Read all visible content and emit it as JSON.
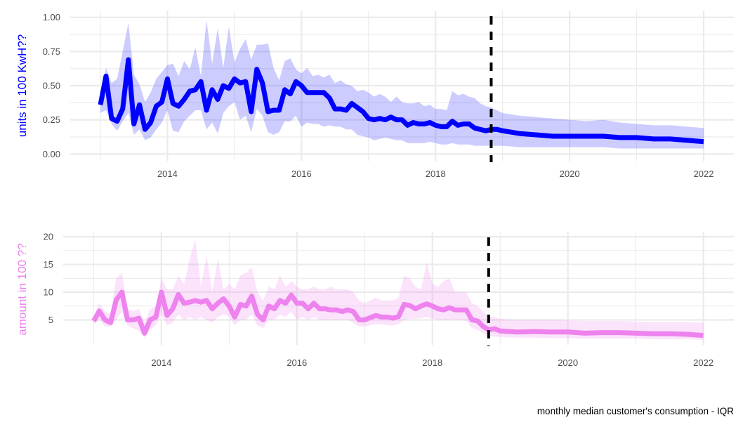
{
  "caption": "monthly median customer's consumption - IQR",
  "chart_data": [
    {
      "type": "area",
      "id": "top",
      "ylabel": "units in 100 KwH??",
      "ylabel_color": "#0000ff",
      "line_color": "#0000ff",
      "band_color": "#0000ff",
      "band_opacity": 0.2,
      "xlim": [
        2012.55,
        2022.45
      ],
      "ylim": [
        -0.05,
        1.05
      ],
      "x_ticks": [
        2014,
        2016,
        2018,
        2020,
        2022
      ],
      "x_tick_labels": [
        "2014",
        "2016",
        "2018",
        "2020",
        "2022"
      ],
      "y_ticks": [
        0.0,
        0.25,
        0.5,
        0.75,
        1.0
      ],
      "y_tick_labels": [
        "0.00",
        "0.25",
        "0.50",
        "0.75",
        "1.00"
      ],
      "vline": 2018.83,
      "x": [
        2013.0,
        2013.083,
        2013.167,
        2013.25,
        2013.333,
        2013.417,
        2013.5,
        2013.583,
        2013.667,
        2013.75,
        2013.833,
        2013.917,
        2014.0,
        2014.083,
        2014.167,
        2014.25,
        2014.333,
        2014.417,
        2014.5,
        2014.583,
        2014.667,
        2014.75,
        2014.833,
        2014.917,
        2015.0,
        2015.083,
        2015.167,
        2015.25,
        2015.333,
        2015.417,
        2015.5,
        2015.583,
        2015.667,
        2015.75,
        2015.833,
        2015.917,
        2016.0,
        2016.083,
        2016.167,
        2016.25,
        2016.333,
        2016.417,
        2016.5,
        2016.583,
        2016.667,
        2016.75,
        2016.833,
        2016.917,
        2017.0,
        2017.083,
        2017.167,
        2017.25,
        2017.333,
        2017.417,
        2017.5,
        2017.583,
        2017.667,
        2017.75,
        2017.833,
        2017.917,
        2018.0,
        2018.083,
        2018.167,
        2018.25,
        2018.333,
        2018.417,
        2018.5,
        2018.583,
        2018.667,
        2018.75,
        2018.833,
        2018.917,
        2019.0,
        2019.25,
        2019.5,
        2019.75,
        2020.0,
        2020.25,
        2020.5,
        2020.75,
        2021.0,
        2021.25,
        2021.5,
        2021.75,
        2022.0
      ],
      "median": [
        0.36,
        0.57,
        0.26,
        0.24,
        0.33,
        0.69,
        0.22,
        0.36,
        0.18,
        0.23,
        0.35,
        0.38,
        0.55,
        0.37,
        0.35,
        0.4,
        0.46,
        0.47,
        0.53,
        0.32,
        0.47,
        0.4,
        0.5,
        0.48,
        0.55,
        0.52,
        0.53,
        0.31,
        0.62,
        0.52,
        0.31,
        0.32,
        0.32,
        0.47,
        0.44,
        0.53,
        0.5,
        0.45,
        0.45,
        0.45,
        0.45,
        0.41,
        0.33,
        0.33,
        0.32,
        0.37,
        0.34,
        0.31,
        0.26,
        0.25,
        0.26,
        0.25,
        0.27,
        0.25,
        0.25,
        0.21,
        0.23,
        0.22,
        0.22,
        0.23,
        0.21,
        0.2,
        0.2,
        0.24,
        0.21,
        0.22,
        0.22,
        0.19,
        0.18,
        0.17,
        0.18,
        0.18,
        0.17,
        0.15,
        0.14,
        0.13,
        0.13,
        0.13,
        0.13,
        0.12,
        0.12,
        0.11,
        0.11,
        0.1,
        0.09
      ],
      "q1": [
        0.3,
        0.32,
        0.22,
        0.17,
        0.24,
        0.3,
        0.14,
        0.18,
        0.1,
        0.12,
        0.18,
        0.23,
        0.32,
        0.17,
        0.16,
        0.24,
        0.28,
        0.32,
        0.32,
        0.18,
        0.23,
        0.15,
        0.3,
        0.35,
        0.38,
        0.25,
        0.28,
        0.16,
        0.33,
        0.28,
        0.16,
        0.14,
        0.16,
        0.24,
        0.24,
        0.28,
        0.2,
        0.23,
        0.22,
        0.22,
        0.2,
        0.21,
        0.2,
        0.2,
        0.18,
        0.18,
        0.14,
        0.13,
        0.12,
        0.1,
        0.11,
        0.12,
        0.11,
        0.1,
        0.1,
        0.08,
        0.08,
        0.08,
        0.08,
        0.09,
        0.08,
        0.07,
        0.07,
        0.08,
        0.07,
        0.07,
        0.07,
        0.06,
        0.06,
        0.06,
        0.06,
        0.06,
        0.06,
        0.05,
        0.05,
        0.05,
        0.05,
        0.05,
        0.05,
        0.04,
        0.04,
        0.04,
        0.04,
        0.04,
        0.04
      ],
      "q3": [
        0.42,
        0.63,
        0.52,
        0.55,
        0.75,
        0.96,
        0.58,
        0.51,
        0.38,
        0.45,
        0.55,
        0.6,
        0.65,
        0.66,
        0.57,
        0.68,
        0.62,
        0.78,
        0.57,
        0.98,
        0.66,
        0.92,
        0.63,
        0.93,
        0.67,
        0.77,
        0.84,
        0.69,
        0.8,
        0.8,
        0.81,
        0.63,
        0.54,
        0.68,
        0.7,
        0.62,
        0.59,
        0.63,
        0.57,
        0.58,
        0.56,
        0.58,
        0.52,
        0.54,
        0.51,
        0.5,
        0.46,
        0.47,
        0.45,
        0.42,
        0.44,
        0.42,
        0.38,
        0.42,
        0.38,
        0.37,
        0.37,
        0.38,
        0.35,
        0.36,
        0.33,
        0.33,
        0.32,
        0.46,
        0.43,
        0.44,
        0.42,
        0.41,
        0.37,
        0.35,
        0.34,
        0.32,
        0.3,
        0.28,
        0.27,
        0.26,
        0.25,
        0.24,
        0.25,
        0.23,
        0.22,
        0.21,
        0.21,
        0.2,
        0.19
      ]
    },
    {
      "type": "area",
      "id": "bottom",
      "ylabel": "amount in 100 ??",
      "ylabel_color": "#ee82ee",
      "line_color": "#ee82ee",
      "band_color": "#ee82ee",
      "band_opacity": 0.22,
      "xlim": [
        2012.55,
        2022.45
      ],
      "ylim": [
        0.5,
        20.9
      ],
      "x_ticks": [
        2014,
        2016,
        2018,
        2020,
        2022
      ],
      "x_tick_labels": [
        "2014",
        "2016",
        "2018",
        "2020",
        "2022"
      ],
      "y_ticks": [
        5,
        10,
        15,
        20
      ],
      "y_tick_labels": [
        "5",
        "10",
        "15",
        "20"
      ],
      "vline": 2018.83,
      "x": [
        2013.0,
        2013.083,
        2013.167,
        2013.25,
        2013.333,
        2013.417,
        2013.5,
        2013.583,
        2013.667,
        2013.75,
        2013.833,
        2013.917,
        2014.0,
        2014.083,
        2014.167,
        2014.25,
        2014.333,
        2014.417,
        2014.5,
        2014.583,
        2014.667,
        2014.75,
        2014.833,
        2014.917,
        2015.0,
        2015.083,
        2015.167,
        2015.25,
        2015.333,
        2015.417,
        2015.5,
        2015.583,
        2015.667,
        2015.75,
        2015.833,
        2015.917,
        2016.0,
        2016.083,
        2016.167,
        2016.25,
        2016.333,
        2016.417,
        2016.5,
        2016.583,
        2016.667,
        2016.75,
        2016.833,
        2016.917,
        2017.0,
        2017.083,
        2017.167,
        2017.25,
        2017.333,
        2017.417,
        2017.5,
        2017.583,
        2017.667,
        2017.75,
        2017.833,
        2017.917,
        2018.0,
        2018.083,
        2018.167,
        2018.25,
        2018.333,
        2018.417,
        2018.5,
        2018.583,
        2018.667,
        2018.75,
        2018.833,
        2018.917,
        2019.0,
        2019.25,
        2019.5,
        2019.75,
        2020.0,
        2020.25,
        2020.5,
        2020.75,
        2021.0,
        2021.25,
        2021.5,
        2021.75,
        2022.0
      ],
      "median": [
        4.8,
        6.6,
        5.0,
        4.5,
        8.6,
        10.0,
        5.0,
        5.0,
        5.3,
        2.6,
        5.0,
        5.5,
        10.0,
        5.8,
        7.0,
        9.6,
        8.0,
        8.2,
        8.5,
        8.2,
        8.5,
        7.0,
        8.0,
        8.8,
        7.5,
        5.5,
        7.8,
        7.5,
        9.3,
        6.0,
        5.0,
        7.5,
        7.0,
        8.5,
        8.0,
        9.5,
        8.0,
        8.0,
        7.0,
        8.0,
        7.0,
        7.0,
        6.8,
        6.8,
        6.5,
        6.8,
        6.5,
        5.0,
        5.0,
        5.4,
        5.8,
        5.5,
        5.5,
        5.3,
        5.6,
        7.8,
        7.6,
        7.0,
        7.5,
        7.9,
        7.5,
        7.0,
        6.8,
        7.2,
        6.8,
        6.8,
        6.8,
        5.0,
        4.8,
        3.8,
        3.2,
        3.4,
        3.0,
        2.8,
        2.9,
        2.8,
        2.8,
        2.6,
        2.7,
        2.7,
        2.6,
        2.5,
        2.5,
        2.4,
        2.2
      ],
      "q1": [
        4.2,
        5.0,
        3.8,
        3.8,
        5.0,
        6.5,
        4.0,
        3.5,
        3.0,
        1.8,
        3.2,
        4.0,
        6.0,
        4.0,
        4.5,
        6.0,
        5.0,
        5.5,
        5.0,
        5.5,
        5.0,
        4.5,
        5.5,
        6.0,
        5.5,
        4.0,
        5.0,
        5.0,
        6.0,
        4.0,
        3.5,
        5.0,
        5.0,
        6.0,
        5.5,
        6.5,
        5.0,
        5.5,
        5.0,
        5.5,
        5.0,
        5.0,
        5.0,
        5.0,
        5.0,
        5.0,
        4.5,
        3.8,
        3.8,
        4.0,
        4.2,
        4.2,
        4.0,
        4.0,
        4.2,
        5.0,
        5.2,
        5.2,
        5.3,
        5.5,
        5.2,
        5.0,
        5.0,
        5.0,
        5.0,
        5.0,
        4.8,
        3.5,
        3.2,
        2.6,
        2.0,
        2.0,
        1.9,
        1.8,
        1.8,
        1.7,
        1.7,
        1.6,
        1.6,
        1.6,
        1.6,
        1.5,
        1.5,
        1.5,
        1.4
      ],
      "q3": [
        5.5,
        8.0,
        6.5,
        6.0,
        12.5,
        13.5,
        7.0,
        6.5,
        7.0,
        4.5,
        7.0,
        7.5,
        12.5,
        10.5,
        10.5,
        13.0,
        11.5,
        16.0,
        19.5,
        11.0,
        16.5,
        10.0,
        16.0,
        10.5,
        11.5,
        10.5,
        13.0,
        13.5,
        14.5,
        10.0,
        8.5,
        11.0,
        10.5,
        13.0,
        11.0,
        12.0,
        11.0,
        10.5,
        10.5,
        11.0,
        10.5,
        10.5,
        11.0,
        10.5,
        10.5,
        10.5,
        10.0,
        8.5,
        8.0,
        8.5,
        9.0,
        8.5,
        8.5,
        8.5,
        9.0,
        13.0,
        12.5,
        11.0,
        10.5,
        15.5,
        11.5,
        11.0,
        12.0,
        12.5,
        10.0,
        10.0,
        10.0,
        8.0,
        7.5,
        6.5,
        5.5,
        5.5,
        5.2,
        5.0,
        5.0,
        5.0,
        4.9,
        4.8,
        4.8,
        4.8,
        4.7,
        4.6,
        4.6,
        4.6,
        4.5
      ]
    }
  ]
}
